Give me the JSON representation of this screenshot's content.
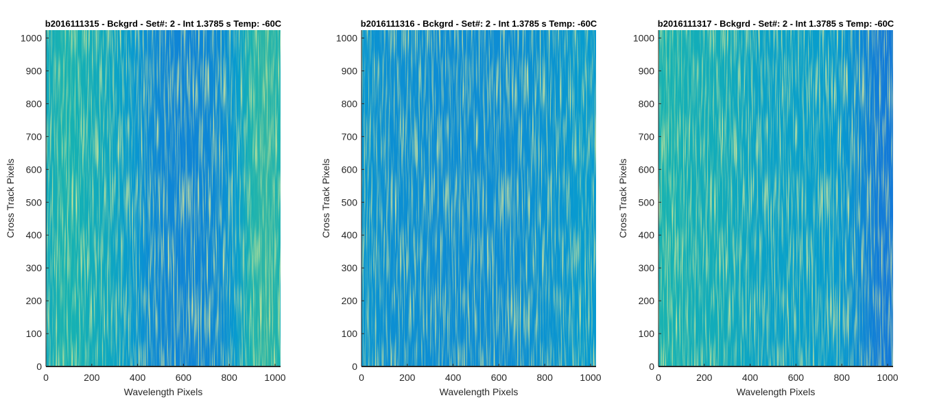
{
  "chart_data": [
    {
      "type": "heatmap",
      "title": "b2016111315 - Bckgrd - Set#: 2 - Int 1.3785 s Temp: -60C",
      "xlabel": "Wavelength Pixels",
      "ylabel": "Cross Track Pixels",
      "xlim": [
        0,
        1024
      ],
      "ylim": [
        0,
        1024
      ],
      "xticks": [
        0,
        200,
        400,
        600,
        800,
        1000
      ],
      "yticks": [
        0,
        100,
        200,
        300,
        400,
        500,
        600,
        700,
        800,
        900,
        1000
      ],
      "colormap": "parula",
      "column_intensity": {
        "x": [
          0,
          64,
          128,
          192,
          256,
          320,
          384,
          448,
          512,
          576,
          640,
          704,
          768,
          832,
          896,
          960,
          1024
        ],
        "level": [
          0.5,
          0.56,
          0.55,
          0.52,
          0.5,
          0.46,
          0.41,
          0.36,
          0.34,
          0.33,
          0.33,
          0.34,
          0.36,
          0.42,
          0.56,
          0.6,
          0.56
        ]
      }
    },
    {
      "type": "heatmap",
      "title": "b2016111316 - Bckgrd - Set#: 2 - Int 1.3785 s Temp: -60C",
      "xlabel": "Wavelength Pixels",
      "ylabel": "Cross Track Pixels",
      "xlim": [
        0,
        1024
      ],
      "ylim": [
        0,
        1024
      ],
      "xticks": [
        0,
        200,
        400,
        600,
        800,
        1000
      ],
      "yticks": [
        0,
        100,
        200,
        300,
        400,
        500,
        600,
        700,
        800,
        900,
        1000
      ],
      "colormap": "parula",
      "column_intensity": {
        "x": [
          0,
          64,
          128,
          192,
          256,
          320,
          384,
          448,
          512,
          576,
          640,
          704,
          768,
          832,
          896,
          960,
          1024
        ],
        "level": [
          0.4,
          0.38,
          0.37,
          0.37,
          0.37,
          0.36,
          0.36,
          0.36,
          0.36,
          0.36,
          0.36,
          0.37,
          0.38,
          0.39,
          0.4,
          0.42,
          0.41
        ]
      }
    },
    {
      "type": "heatmap",
      "title": "b2016111317 - Bckgrd - Set#: 2 - Int 1.3785 s Temp: -60C",
      "xlabel": "Wavelength Pixels",
      "ylabel": "Cross Track Pixels",
      "xlim": [
        0,
        1024
      ],
      "ylim": [
        0,
        1024
      ],
      "xticks": [
        0,
        200,
        400,
        600,
        800,
        1000
      ],
      "yticks": [
        0,
        100,
        200,
        300,
        400,
        500,
        600,
        700,
        800,
        900,
        1000
      ],
      "colormap": "parula",
      "column_intensity": {
        "x": [
          0,
          64,
          128,
          192,
          256,
          320,
          384,
          448,
          512,
          576,
          640,
          704,
          768,
          832,
          896,
          960,
          1024
        ],
        "level": [
          0.56,
          0.55,
          0.53,
          0.52,
          0.52,
          0.5,
          0.48,
          0.46,
          0.45,
          0.45,
          0.44,
          0.43,
          0.42,
          0.39,
          0.34,
          0.3,
          0.28
        ]
      }
    }
  ]
}
